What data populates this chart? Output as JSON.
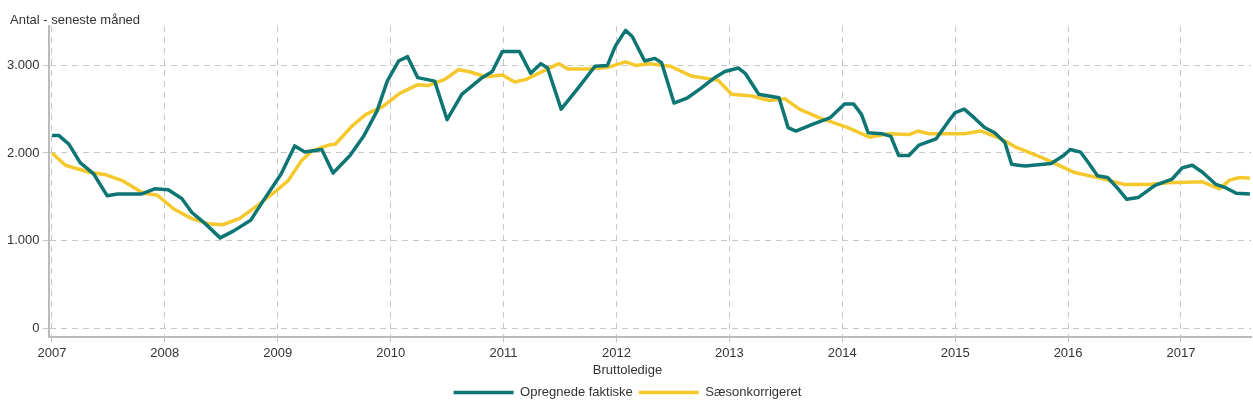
{
  "chart_data": {
    "type": "line",
    "ylabel": "Antal - seneste måned",
    "legend_title": "Bruttoledige",
    "legend": "bottom",
    "grid": true,
    "line_style": "solid",
    "xlim": [
      2006.97,
      2017.62
    ],
    "xticks": [
      2007,
      2008,
      2009,
      2010,
      2011,
      2012,
      2013,
      2014,
      2015,
      2016,
      2017
    ],
    "ylim": [
      -100,
      3450
    ],
    "yticks": [
      {
        "value": 0,
        "label": "0"
      },
      {
        "value": 1000,
        "label": "1.000"
      },
      {
        "value": 2000,
        "label": "2.000"
      },
      {
        "value": 3000,
        "label": "3.000"
      }
    ],
    "series": [
      {
        "name": "Opregnede faktiske",
        "color": "#0e7575",
        "x": [
          2007.0,
          2007.06,
          2007.15,
          2007.25,
          2007.37,
          2007.49,
          2007.58,
          2007.79,
          2007.91,
          2008.03,
          2008.15,
          2008.24,
          2008.36,
          2008.49,
          2008.61,
          2008.76,
          2008.88,
          2009.03,
          2009.15,
          2009.24,
          2009.39,
          2009.49,
          2009.64,
          2009.76,
          2009.88,
          2009.97,
          2010.07,
          2010.15,
          2010.24,
          2010.39,
          2010.5,
          2010.63,
          2010.81,
          2010.9,
          2010.99,
          2011.14,
          2011.24,
          2011.33,
          2011.39,
          2011.51,
          2011.66,
          2011.81,
          2011.92,
          2011.99,
          2012.08,
          2012.14,
          2012.25,
          2012.34,
          2012.4,
          2012.51,
          2012.63,
          2012.75,
          2012.87,
          2012.96,
          2013.08,
          2013.14,
          2013.26,
          2013.44,
          2013.52,
          2013.59,
          2013.74,
          2013.89,
          2014.02,
          2014.1,
          2014.17,
          2014.23,
          2014.35,
          2014.43,
          2014.5,
          2014.59,
          2014.68,
          2014.83,
          2014.94,
          2015.0,
          2015.08,
          2015.17,
          2015.26,
          2015.35,
          2015.44,
          2015.5,
          2015.62,
          2015.85,
          2015.96,
          2016.02,
          2016.11,
          2016.19,
          2016.26,
          2016.35,
          2016.43,
          2016.52,
          2016.62,
          2016.77,
          2016.92,
          2017.01,
          2017.1,
          2017.19,
          2017.31,
          2017.4,
          2017.49,
          2017.61
        ],
        "values": [
          2200,
          2200,
          2100,
          1890,
          1760,
          1510,
          1530,
          1530,
          1590,
          1580,
          1480,
          1320,
          1190,
          1030,
          1110,
          1230,
          1470,
          1760,
          2080,
          2010,
          2040,
          1770,
          1970,
          2190,
          2480,
          2820,
          3050,
          3100,
          2860,
          2820,
          2380,
          2670,
          2860,
          2930,
          3160,
          3160,
          2910,
          3020,
          2970,
          2500,
          2740,
          2990,
          3000,
          3220,
          3400,
          3330,
          3050,
          3080,
          3030,
          2570,
          2630,
          2740,
          2860,
          2930,
          2970,
          2910,
          2670,
          2630,
          2290,
          2250,
          2330,
          2400,
          2560,
          2560,
          2440,
          2230,
          2220,
          2190,
          1970,
          1970,
          2090,
          2160,
          2360,
          2460,
          2500,
          2400,
          2290,
          2230,
          2120,
          1870,
          1850,
          1880,
          1970,
          2040,
          2010,
          1870,
          1740,
          1720,
          1610,
          1470,
          1490,
          1630,
          1700,
          1830,
          1860,
          1780,
          1640,
          1600,
          1540,
          1530
        ]
      },
      {
        "name": "Sæsonkorrigeret",
        "color": "#f5c92e",
        "x": [
          2007.0,
          2007.12,
          2007.33,
          2007.48,
          2007.63,
          2007.81,
          2007.93,
          2008.08,
          2008.24,
          2008.39,
          2008.51,
          2008.66,
          2008.78,
          2008.96,
          2009.09,
          2009.21,
          2009.3,
          2009.45,
          2009.51,
          2009.66,
          2009.78,
          2009.93,
          2010.08,
          2010.24,
          2010.33,
          2010.48,
          2010.6,
          2010.69,
          2010.84,
          2010.99,
          2011.1,
          2011.2,
          2011.36,
          2011.49,
          2011.57,
          2011.75,
          2011.93,
          2012.08,
          2012.17,
          2012.29,
          2012.48,
          2012.66,
          2012.9,
          2013.02,
          2013.2,
          2013.35,
          2013.49,
          2013.62,
          2013.8,
          2014.05,
          2014.24,
          2014.41,
          2014.59,
          2014.67,
          2014.77,
          2015.08,
          2015.23,
          2015.41,
          2015.53,
          2015.8,
          2016.05,
          2016.29,
          2016.5,
          2016.71,
          2016.89,
          2017.19,
          2017.34,
          2017.43,
          2017.52,
          2017.61
        ],
        "values": [
          2000,
          1860,
          1780,
          1750,
          1680,
          1540,
          1520,
          1360,
          1250,
          1190,
          1180,
          1250,
          1360,
          1540,
          1680,
          1910,
          2020,
          2090,
          2100,
          2310,
          2440,
          2530,
          2680,
          2780,
          2770,
          2840,
          2950,
          2930,
          2870,
          2890,
          2810,
          2840,
          2940,
          3020,
          2960,
          2960,
          2980,
          3040,
          3000,
          3020,
          2990,
          2880,
          2830,
          2670,
          2650,
          2600,
          2620,
          2500,
          2400,
          2290,
          2180,
          2220,
          2210,
          2250,
          2220,
          2220,
          2250,
          2160,
          2070,
          1930,
          1780,
          1710,
          1640,
          1640,
          1660,
          1670,
          1590,
          1690,
          1720,
          1710
        ]
      }
    ]
  }
}
